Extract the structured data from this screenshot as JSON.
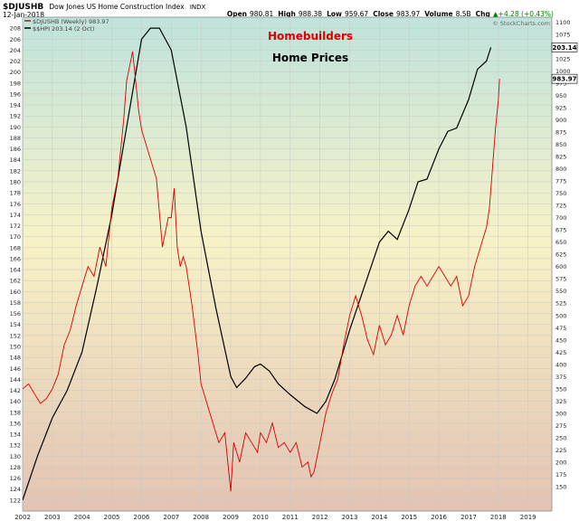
{
  "header": {
    "symbol": "$DJUSHB",
    "description": "Dow Jones US Home Construction Index",
    "exchange": "INDX",
    "date": "12-Jan-2018",
    "stats": [
      {
        "label": "Open",
        "value": "980.81"
      },
      {
        "label": "High",
        "value": "988.38"
      },
      {
        "label": "Low",
        "value": "959.67"
      },
      {
        "label": "Close",
        "value": "983.97"
      },
      {
        "label": "Volume",
        "value": "8.5B"
      },
      {
        "label": "Chg",
        "value": "+4.28 (+0.43%)",
        "dir": "up"
      }
    ],
    "legend": [
      {
        "text": "$DJUSHB (Weekly) 983.97",
        "color": "#d40000"
      },
      {
        "text": "$$HPI 203.14 (2 Oct)",
        "color": "#000000"
      }
    ],
    "watermark": "© StockCharts.com"
  },
  "annotations": {
    "homebuilders": "Homebuilders",
    "home_prices": "Home Prices"
  },
  "chart_data": {
    "type": "line",
    "background_gradient": [
      "#bfe3dc",
      "#f7f2c6",
      "#e3c3b3"
    ],
    "grid": true,
    "x_ticks": [
      "2002",
      "2003",
      "2004",
      "2005",
      "2006",
      "2007",
      "2008",
      "2009",
      "2010",
      "2011",
      "2012",
      "2013",
      "2014",
      "2015",
      "2016",
      "2017",
      "2018",
      "2019"
    ],
    "left_axis": {
      "ylim": [
        120,
        210
      ],
      "ticks": [
        122,
        124,
        126,
        128,
        130,
        132,
        134,
        136,
        138,
        140,
        142,
        144,
        146,
        148,
        150,
        152,
        154,
        156,
        158,
        160,
        162,
        164,
        166,
        168,
        170,
        172,
        174,
        176,
        178,
        180,
        182,
        184,
        186,
        188,
        190,
        192,
        194,
        196,
        198,
        200,
        202,
        204,
        206,
        208
      ]
    },
    "right_axis": {
      "ylim": [
        100,
        1110
      ],
      "ticks": [
        150,
        175,
        200,
        225,
        250,
        275,
        300,
        325,
        350,
        375,
        400,
        425,
        450,
        475,
        500,
        525,
        550,
        575,
        600,
        625,
        650,
        675,
        700,
        725,
        750,
        775,
        800,
        825,
        850,
        875,
        900,
        925,
        950,
        975,
        1000,
        1025,
        1050,
        1075,
        1100
      ]
    },
    "series": [
      {
        "name": "$$HPI",
        "axis": "left",
        "color": "#000000",
        "last_value_label": "203.14",
        "x": [
          2002.0,
          2002.5,
          2003.0,
          2003.5,
          2004.0,
          2004.5,
          2005.0,
          2005.5,
          2006.0,
          2006.3,
          2006.6,
          2007.0,
          2007.5,
          2008.0,
          2008.5,
          2009.0,
          2009.2,
          2009.5,
          2009.8,
          2010.0,
          2010.3,
          2010.6,
          2011.0,
          2011.5,
          2011.9,
          2012.2,
          2012.5,
          2013.0,
          2013.5,
          2014.0,
          2014.3,
          2014.6,
          2015.0,
          2015.3,
          2015.6,
          2016.0,
          2016.3,
          2016.6,
          2017.0,
          2017.3,
          2017.6,
          2017.75
        ],
        "y": [
          122,
          130,
          137,
          142,
          149,
          161,
          174,
          190,
          206,
          208,
          208,
          204,
          190,
          171,
          157,
          144.5,
          142.5,
          144.2,
          146.3,
          146.8,
          145.5,
          143.2,
          141.2,
          139,
          137.8,
          140,
          144,
          153,
          161,
          169,
          171,
          169.5,
          175,
          180,
          180.5,
          186,
          189.2,
          189.8,
          195,
          200.5,
          202,
          204.5
        ]
      },
      {
        "name": "$DJUSHB",
        "axis": "right",
        "color": "#d40000",
        "last_value_label": "983.97",
        "x": [
          2002.0,
          2002.2,
          2002.4,
          2002.6,
          2002.8,
          2003.0,
          2003.2,
          2003.4,
          2003.6,
          2003.8,
          2004.0,
          2004.2,
          2004.4,
          2004.6,
          2004.8,
          2005.0,
          2005.2,
          2005.4,
          2005.5,
          2005.7,
          2005.9,
          2006.0,
          2006.1,
          2006.3,
          2006.5,
          2006.7,
          2006.9,
          2007.0,
          2007.1,
          2007.2,
          2007.3,
          2007.4,
          2007.5,
          2007.7,
          2007.9,
          2008.0,
          2008.2,
          2008.4,
          2008.6,
          2008.8,
          2008.9,
          2009.0,
          2009.1,
          2009.3,
          2009.5,
          2009.7,
          2009.9,
          2010.0,
          2010.2,
          2010.4,
          2010.6,
          2010.8,
          2011.0,
          2011.2,
          2011.4,
          2011.6,
          2011.7,
          2011.8,
          2012.0,
          2012.2,
          2012.4,
          2012.6,
          2012.8,
          2013.0,
          2013.2,
          2013.4,
          2013.6,
          2013.8,
          2014.0,
          2014.2,
          2014.4,
          2014.6,
          2014.8,
          2015.0,
          2015.2,
          2015.4,
          2015.6,
          2015.8,
          2016.0,
          2016.2,
          2016.4,
          2016.6,
          2016.8,
          2017.0,
          2017.2,
          2017.4,
          2017.6,
          2017.7,
          2017.8,
          2017.9,
          2018.0,
          2018.04
        ],
        "y": [
          350,
          360,
          340,
          320,
          330,
          350,
          380,
          440,
          470,
          520,
          560,
          600,
          580,
          640,
          600,
          720,
          780,
          900,
          980,
          1040,
          920,
          880,
          860,
          820,
          780,
          640,
          700,
          700,
          760,
          640,
          600,
          620,
          600,
          520,
          420,
          360,
          320,
          280,
          240,
          260,
          200,
          140,
          240,
          200,
          260,
          240,
          220,
          260,
          240,
          280,
          230,
          240,
          220,
          240,
          190,
          200,
          170,
          180,
          240,
          300,
          340,
          370,
          440,
          500,
          540,
          500,
          450,
          420,
          480,
          440,
          460,
          500,
          460,
          520,
          560,
          580,
          560,
          580,
          600,
          580,
          560,
          580,
          520,
          540,
          600,
          640,
          680,
          720,
          800,
          880,
          940,
          983.97
        ]
      }
    ]
  }
}
